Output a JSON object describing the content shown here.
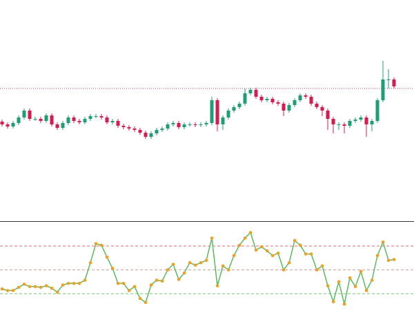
{
  "chart_data": [
    {
      "type": "candlestick",
      "open": [
        142,
        138,
        135,
        140,
        148,
        158,
        146,
        146,
        143,
        151,
        138,
        133,
        140,
        148,
        143,
        141,
        146,
        150,
        150,
        148,
        141,
        143,
        136,
        134,
        132,
        130,
        126,
        120,
        125,
        130,
        132,
        138,
        140,
        134,
        138,
        138,
        137,
        138,
        140,
        173,
        138,
        148,
        158,
        163,
        168,
        183,
        188,
        178,
        173,
        175,
        170,
        168,
        158,
        166,
        173,
        180,
        178,
        168,
        163,
        158,
        146,
        138,
        138,
        136,
        143,
        145,
        148,
        138,
        143,
        173,
        203,
        203
      ],
      "high": [
        145,
        141,
        143,
        151,
        161,
        161,
        149,
        149,
        154,
        154,
        141,
        143,
        151,
        151,
        146,
        149,
        153,
        153,
        153,
        151,
        146,
        146,
        139,
        137,
        135,
        133,
        129,
        128,
        133,
        135,
        141,
        143,
        143,
        141,
        141,
        141,
        141,
        143,
        178,
        176,
        151,
        161,
        166,
        171,
        190,
        191,
        191,
        181,
        178,
        178,
        173,
        171,
        169,
        176,
        183,
        183,
        181,
        171,
        166,
        161,
        149,
        141,
        141,
        146,
        148,
        151,
        151,
        146,
        176,
        230,
        218,
        206
      ],
      "low": [
        135,
        132,
        132,
        137,
        145,
        143,
        143,
        140,
        140,
        135,
        130,
        130,
        137,
        140,
        138,
        138,
        143,
        147,
        145,
        138,
        138,
        133,
        131,
        129,
        127,
        123,
        117,
        117,
        122,
        127,
        129,
        135,
        131,
        131,
        135,
        134,
        134,
        135,
        137,
        128,
        130,
        145,
        155,
        160,
        165,
        180,
        175,
        170,
        170,
        167,
        165,
        150,
        155,
        163,
        170,
        175,
        165,
        160,
        150,
        130,
        125,
        130,
        125,
        133,
        140,
        142,
        120,
        128,
        140,
        170,
        190,
        190
      ],
      "close": [
        138,
        135,
        140,
        148,
        158,
        146,
        146,
        143,
        151,
        138,
        133,
        140,
        148,
        143,
        141,
        146,
        150,
        150,
        148,
        141,
        143,
        136,
        134,
        132,
        130,
        126,
        120,
        125,
        130,
        132,
        138,
        140,
        134,
        138,
        138,
        137,
        138,
        140,
        173,
        138,
        148,
        158,
        163,
        168,
        183,
        188,
        178,
        173,
        175,
        170,
        168,
        158,
        166,
        173,
        180,
        178,
        168,
        163,
        158,
        146,
        138,
        138,
        136,
        143,
        145,
        148,
        138,
        143,
        173,
        203,
        203,
        193
      ],
      "up_color": "#1f9d74",
      "down_color": "#d81b4f",
      "ylim": [
        0,
        318
      ],
      "price_line": 190,
      "price_line_color": "#c0395a"
    },
    {
      "type": "line",
      "values": [
        26,
        24,
        24,
        28,
        32,
        29,
        29,
        28,
        30,
        27,
        22,
        31,
        33,
        33,
        33,
        37,
        59,
        83,
        81,
        66,
        52,
        33,
        33,
        24,
        29,
        14,
        9,
        31,
        37,
        36,
        50,
        57,
        38,
        46,
        59,
        56,
        59,
        62,
        90,
        30,
        55,
        50,
        68,
        81,
        90,
        97,
        75,
        79,
        74,
        68,
        71,
        50,
        59,
        87,
        81,
        70,
        70,
        50,
        55,
        30,
        10,
        35,
        7,
        40,
        29,
        48,
        24,
        37,
        68,
        85,
        62,
        63
      ],
      "color": "#5cb85c",
      "marker_color": "#f0a020",
      "ylim": [
        0,
        100
      ],
      "levels": [
        80,
        50,
        20
      ],
      "level_colors": [
        "#e06666",
        "#d9a0a0",
        "#6cc66c"
      ]
    }
  ]
}
